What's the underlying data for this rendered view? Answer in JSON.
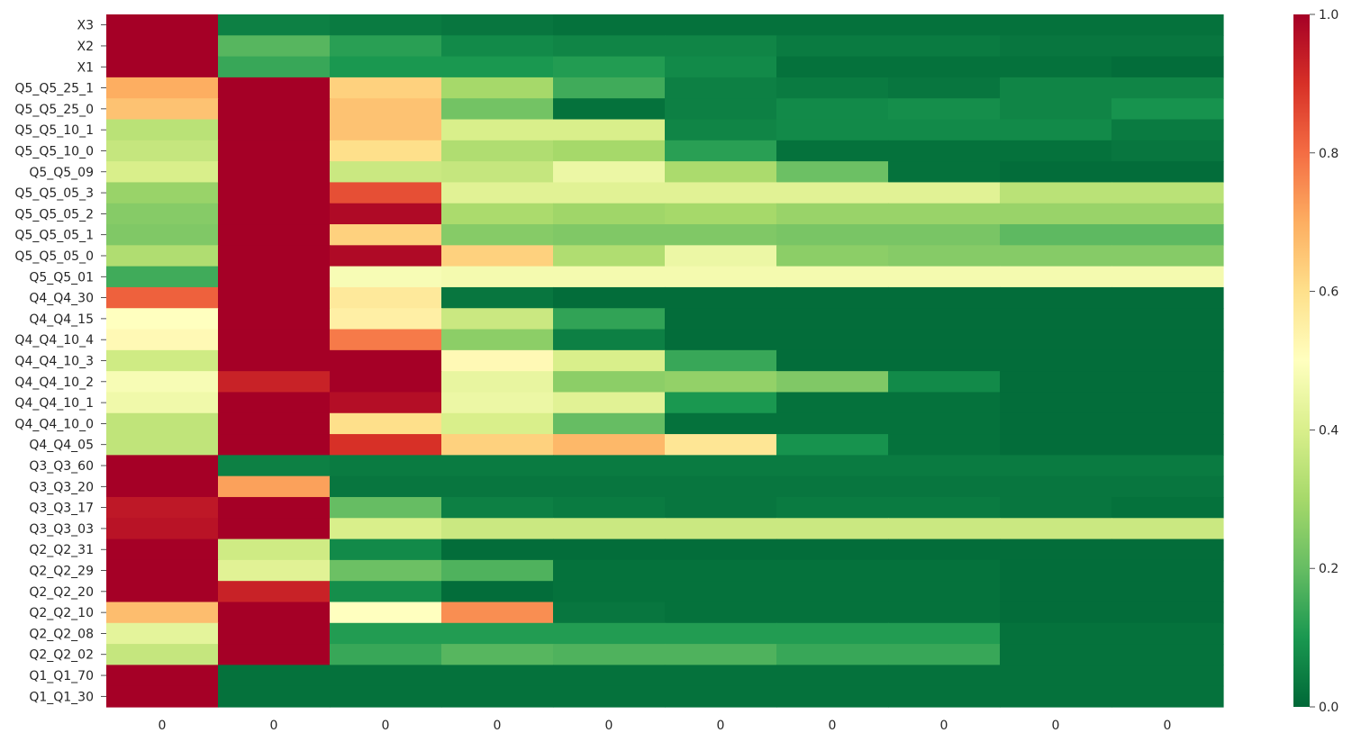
{
  "chart_data": {
    "type": "heatmap",
    "title": "",
    "xlabel": "",
    "ylabel": "",
    "colormap": "RdYlGn_r",
    "value_range": [
      0,
      1
    ],
    "x_tick_labels": [
      "0",
      "0",
      "0",
      "0",
      "0",
      "0",
      "0",
      "0",
      "0",
      "0"
    ],
    "y_tick_labels": [
      "X3",
      "X2",
      "X1",
      "Q5_Q5_25_1",
      "Q5_Q5_25_0",
      "Q5_Q5_10_1",
      "Q5_Q5_10_0",
      "Q5_Q5_09",
      "Q5_Q5_05_3",
      "Q5_Q5_05_2",
      "Q5_Q5_05_1",
      "Q5_Q5_05_0",
      "Q5_Q5_01",
      "Q4_Q4_30",
      "Q4_Q4_15",
      "Q4_Q4_10_4",
      "Q4_Q4_10_3",
      "Q4_Q4_10_2",
      "Q4_Q4_10_1",
      "Q4_Q4_10_0",
      "Q4_Q4_05",
      "Q3_Q3_60",
      "Q3_Q3_20",
      "Q3_Q3_17",
      "Q3_Q3_03",
      "Q2_Q2_31",
      "Q2_Q2_29",
      "Q2_Q2_20",
      "Q2_Q2_10",
      "Q2_Q2_08",
      "Q2_Q2_02",
      "Q1_Q1_70",
      "Q1_Q1_30"
    ],
    "values": [
      [
        1.0,
        0.05,
        0.04,
        0.03,
        0.02,
        0.02,
        0.02,
        0.02,
        0.02,
        0.02
      ],
      [
        1.0,
        0.18,
        0.12,
        0.07,
        0.06,
        0.06,
        0.04,
        0.04,
        0.03,
        0.03
      ],
      [
        1.0,
        0.14,
        0.1,
        0.1,
        0.11,
        0.07,
        0.02,
        0.02,
        0.02,
        0.01
      ],
      [
        0.7,
        1.0,
        0.63,
        0.3,
        0.15,
        0.05,
        0.04,
        0.03,
        0.06,
        0.06
      ],
      [
        0.66,
        1.0,
        0.66,
        0.22,
        0.02,
        0.05,
        0.07,
        0.08,
        0.06,
        0.09
      ],
      [
        0.34,
        1.0,
        0.66,
        0.4,
        0.4,
        0.06,
        0.07,
        0.07,
        0.07,
        0.04
      ],
      [
        0.36,
        1.0,
        0.6,
        0.32,
        0.3,
        0.12,
        0.02,
        0.02,
        0.02,
        0.03
      ],
      [
        0.4,
        1.0,
        0.37,
        0.36,
        0.45,
        0.31,
        0.21,
        0.02,
        0.01,
        0.01
      ],
      [
        0.28,
        1.0,
        0.85,
        0.42,
        0.42,
        0.42,
        0.42,
        0.42,
        0.34,
        0.34
      ],
      [
        0.25,
        1.0,
        0.98,
        0.31,
        0.29,
        0.3,
        0.28,
        0.28,
        0.28,
        0.28
      ],
      [
        0.24,
        1.0,
        0.63,
        0.25,
        0.24,
        0.24,
        0.23,
        0.23,
        0.19,
        0.19
      ],
      [
        0.32,
        1.0,
        0.98,
        0.63,
        0.32,
        0.45,
        0.26,
        0.25,
        0.25,
        0.25
      ],
      [
        0.15,
        1.0,
        0.48,
        0.47,
        0.47,
        0.47,
        0.47,
        0.47,
        0.47,
        0.47
      ],
      [
        0.82,
        1.0,
        0.57,
        0.03,
        0.01,
        0.01,
        0.01,
        0.01,
        0.01,
        0.01
      ],
      [
        0.5,
        1.0,
        0.55,
        0.37,
        0.13,
        0.01,
        0.01,
        0.01,
        0.01,
        0.01
      ],
      [
        0.52,
        1.0,
        0.78,
        0.26,
        0.05,
        0.01,
        0.01,
        0.01,
        0.01,
        0.01
      ],
      [
        0.38,
        1.0,
        1.0,
        0.52,
        0.4,
        0.14,
        0.01,
        0.01,
        0.01,
        0.01
      ],
      [
        0.48,
        0.93,
        1.0,
        0.44,
        0.26,
        0.27,
        0.24,
        0.07,
        0.01,
        0.01
      ],
      [
        0.46,
        1.0,
        0.97,
        0.45,
        0.42,
        0.1,
        0.02,
        0.02,
        0.01,
        0.01
      ],
      [
        0.35,
        1.0,
        0.6,
        0.4,
        0.2,
        0.02,
        0.02,
        0.02,
        0.01,
        0.01
      ],
      [
        0.35,
        1.0,
        0.9,
        0.63,
        0.68,
        0.58,
        0.09,
        0.02,
        0.01,
        0.01
      ],
      [
        1.0,
        0.05,
        0.04,
        0.04,
        0.04,
        0.04,
        0.04,
        0.04,
        0.04,
        0.04
      ],
      [
        1.0,
        0.72,
        0.03,
        0.03,
        0.03,
        0.03,
        0.03,
        0.03,
        0.03,
        0.03
      ],
      [
        0.95,
        1.0,
        0.2,
        0.05,
        0.04,
        0.03,
        0.04,
        0.04,
        0.03,
        0.02
      ],
      [
        0.96,
        1.0,
        0.4,
        0.37,
        0.37,
        0.37,
        0.37,
        0.37,
        0.37,
        0.37
      ],
      [
        1.0,
        0.38,
        0.07,
        0.01,
        0.01,
        0.01,
        0.01,
        0.01,
        0.01,
        0.01
      ],
      [
        1.0,
        0.42,
        0.21,
        0.17,
        0.02,
        0.02,
        0.02,
        0.02,
        0.01,
        0.01
      ],
      [
        1.0,
        0.93,
        0.08,
        0.01,
        0.02,
        0.02,
        0.02,
        0.02,
        0.01,
        0.01
      ],
      [
        0.67,
        1.0,
        0.5,
        0.75,
        0.03,
        0.02,
        0.02,
        0.02,
        0.01,
        0.01
      ],
      [
        0.43,
        1.0,
        0.11,
        0.11,
        0.11,
        0.11,
        0.11,
        0.11,
        0.02,
        0.02
      ],
      [
        0.36,
        1.0,
        0.14,
        0.18,
        0.17,
        0.17,
        0.14,
        0.14,
        0.02,
        0.02
      ],
      [
        1.0,
        0.02,
        0.02,
        0.02,
        0.02,
        0.02,
        0.02,
        0.02,
        0.02,
        0.02
      ],
      [
        1.0,
        0.02,
        0.02,
        0.02,
        0.02,
        0.02,
        0.02,
        0.02,
        0.02,
        0.02
      ]
    ],
    "colorbar": {
      "range": [
        0,
        1
      ],
      "tick_labels": [
        "0.0",
        "0.2",
        "0.4",
        "0.6",
        "0.8",
        "1.0"
      ]
    }
  }
}
